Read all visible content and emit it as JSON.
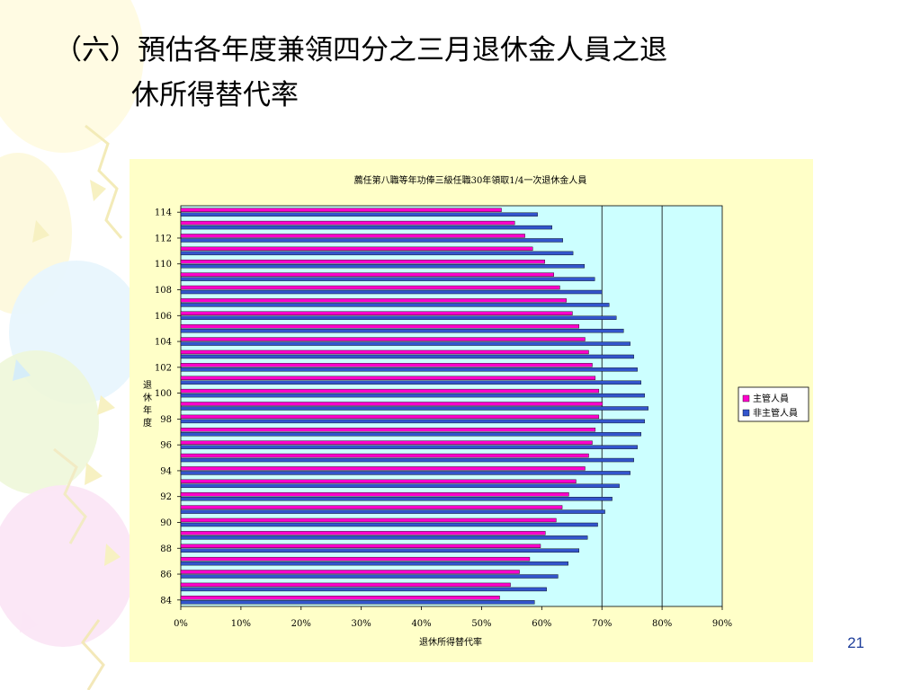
{
  "slide": {
    "title_line1": "（六）預估各年度兼領四分之三月退休金人員之退",
    "title_line2": "休所得替代率",
    "page_number": "21"
  },
  "colors": {
    "panel_bg": "#ffffc8",
    "plot_bg": "#ccffff",
    "series_supervisor": "#ff00cc",
    "series_non_supervisor": "#3355cc",
    "page_number": "#1d3d9a"
  },
  "chart_data": {
    "type": "bar",
    "orientation": "horizontal",
    "title": "薦任第八職等年功俸三級任職30年領取1/4一次退休金人員",
    "xlabel": "退休所得替代率",
    "ylabel": "退休年度",
    "xlim": [
      0,
      0.9
    ],
    "x_ticks": [
      "0%",
      "10%",
      "20%",
      "30%",
      "40%",
      "50%",
      "60%",
      "70%",
      "80%",
      "90%"
    ],
    "y_tick_labels": [
      "84",
      "86",
      "88",
      "90",
      "92",
      "94",
      "96",
      "98",
      "100",
      "102",
      "104",
      "106",
      "108",
      "110",
      "112",
      "114"
    ],
    "categories": [
      "84",
      "85",
      "86",
      "87",
      "88",
      "89",
      "90",
      "91",
      "92",
      "93",
      "94",
      "95",
      "96",
      "97",
      "98",
      "99",
      "100",
      "101",
      "102",
      "103",
      "104",
      "105",
      "106",
      "107",
      "108",
      "109",
      "110",
      "111",
      "112",
      "113",
      "114"
    ],
    "series": [
      {
        "name": "主管人員",
        "color": "#ff00cc",
        "values": [
          0.53,
          0.548,
          0.563,
          0.58,
          0.598,
          0.606,
          0.624,
          0.634,
          0.645,
          0.657,
          0.672,
          0.678,
          0.684,
          0.689,
          0.695,
          0.701,
          0.695,
          0.689,
          0.684,
          0.678,
          0.672,
          0.662,
          0.651,
          0.641,
          0.63,
          0.62,
          0.605,
          0.585,
          0.572,
          0.555,
          0.533
        ]
      },
      {
        "name": "非主管人員",
        "color": "#3355cc",
        "values": [
          0.588,
          0.608,
          0.627,
          0.644,
          0.662,
          0.676,
          0.693,
          0.705,
          0.717,
          0.729,
          0.747,
          0.753,
          0.759,
          0.765,
          0.771,
          0.777,
          0.771,
          0.765,
          0.759,
          0.753,
          0.747,
          0.736,
          0.724,
          0.712,
          0.7,
          0.688,
          0.671,
          0.652,
          0.635,
          0.617,
          0.593
        ]
      }
    ],
    "grid": "vertical major lines from 70% to 90%",
    "legend_position": "right"
  }
}
